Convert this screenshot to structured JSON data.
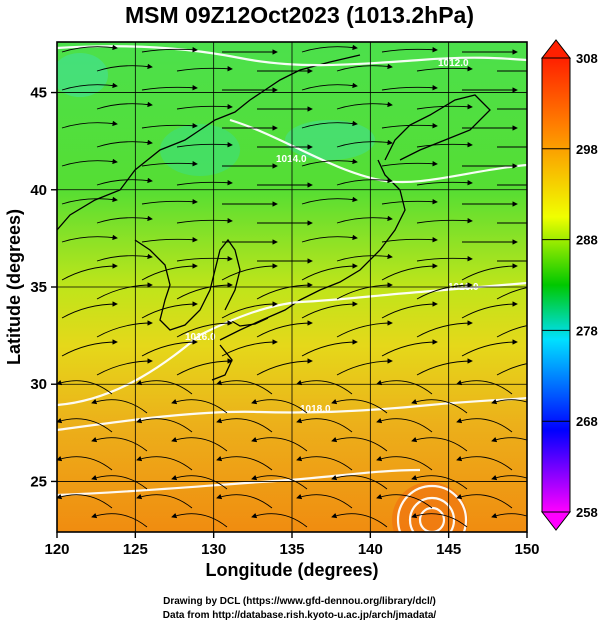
{
  "title": "MSM 09Z12Oct2023 (1013.2hPa)",
  "map": {
    "xlabel": "Longitude (degrees)",
    "ylabel": "Latitude  (degrees)",
    "x_ticks": [
      "120",
      "125",
      "130",
      "135",
      "140",
      "145",
      "150"
    ],
    "y_ticks": [
      "25",
      "30",
      "35",
      "40",
      "45"
    ],
    "x_range": [
      120,
      150
    ],
    "y_range": [
      22.4,
      47.6
    ],
    "isobar_labels": [
      "1012.0",
      "1014.0",
      "1016.0",
      "1016.0",
      "1018.0"
    ]
  },
  "colorbar": {
    "ticks": [
      "308",
      "298",
      "288",
      "278",
      "268",
      "258"
    ],
    "range": [
      258,
      308
    ],
    "colors": [
      "#ff00ff",
      "#0000ff",
      "#00e0ff",
      "#00c800",
      "#f0ff00",
      "#ff8000",
      "#ff2000"
    ]
  },
  "credits": {
    "line1": "Drawing by DCL (https://www.gfd-dennou.org/library/dcl/)",
    "line2": "Data from http://database.rish.kyoto-u.ac.jp/arch/jmadata/"
  }
}
